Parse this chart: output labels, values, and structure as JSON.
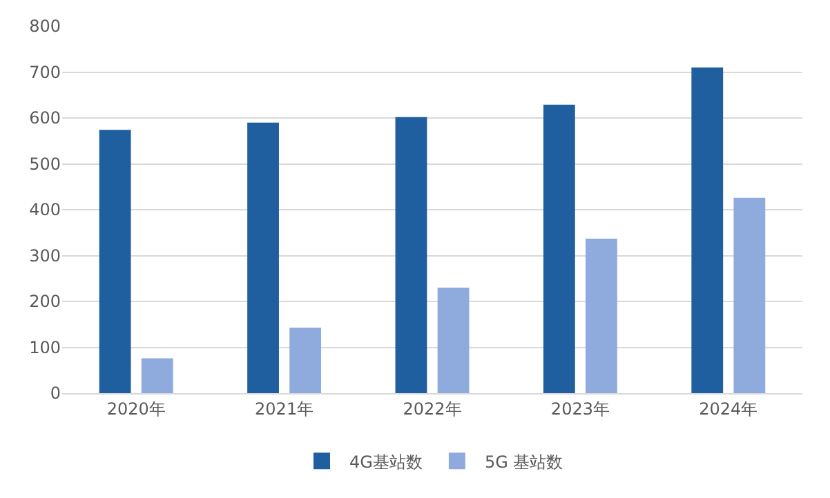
{
  "chart_data": {
    "type": "bar",
    "categories": [
      "2020年",
      "2021年",
      "2022年",
      "2023年",
      "2024年"
    ],
    "series": [
      {
        "name": "4G基站数",
        "color": "#1f5f9f",
        "values": [
          574,
          590,
          602,
          629,
          710
        ]
      },
      {
        "name": "5G 基站数",
        "color": "#8faadc",
        "values": [
          76,
          143,
          230,
          337,
          426
        ]
      }
    ],
    "ylim": [
      0,
      800
    ],
    "yticks": [
      0,
      100,
      200,
      300,
      400,
      500,
      600,
      700,
      800
    ],
    "grid": "y",
    "legend": "bottom"
  }
}
